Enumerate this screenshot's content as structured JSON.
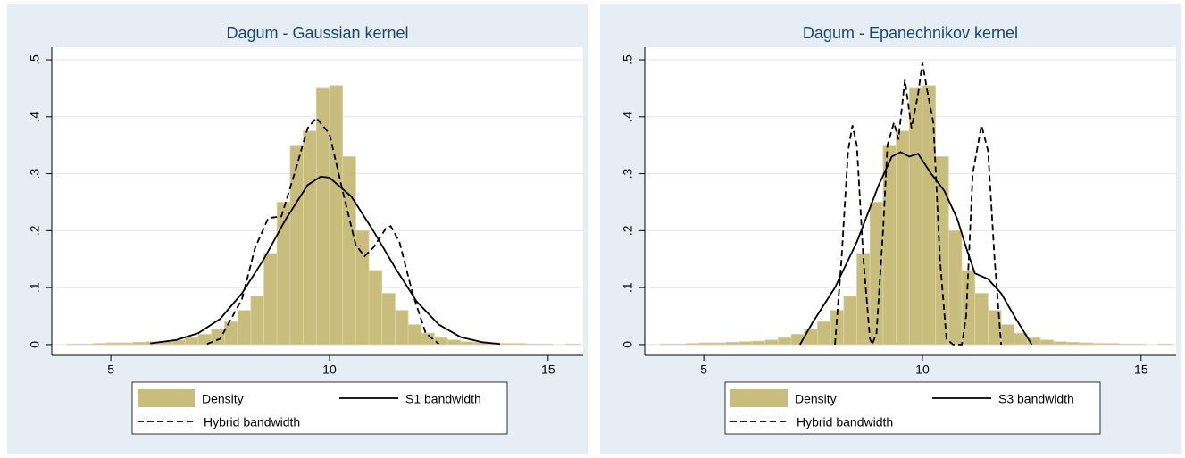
{
  "chart_data": [
    {
      "type": "histogram",
      "title": "Dagum - Gaussian kernel",
      "name": "Density",
      "color": "#c9bd7e",
      "bins": [
        4.0,
        4.3,
        4.6,
        4.9,
        5.2,
        5.5,
        5.8,
        6.1,
        6.4,
        6.7,
        7.0,
        7.3,
        7.6,
        7.9,
        8.2,
        8.5,
        8.8,
        9.1,
        9.4,
        9.7,
        10.0,
        10.3,
        10.6,
        10.9,
        11.2,
        11.5,
        11.8,
        12.1,
        12.4,
        12.7,
        13.0,
        13.3,
        13.6,
        13.9,
        14.2,
        14.5,
        14.8,
        15.1,
        15.4,
        15.7
      ],
      "values": [
        0.001,
        0.001,
        0.002,
        0.003,
        0.003,
        0.004,
        0.005,
        0.006,
        0.008,
        0.012,
        0.018,
        0.027,
        0.04,
        0.06,
        0.085,
        0.16,
        0.25,
        0.35,
        0.375,
        0.45,
        0.455,
        0.33,
        0.2,
        0.13,
        0.09,
        0.06,
        0.035,
        0.02,
        0.012,
        0.008,
        0.005,
        0.004,
        0.003,
        0.002,
        0.002,
        0.001,
        0.001,
        0,
        0.001
      ],
      "series": [
        {
          "name": "S1 bandwidth",
          "color": "#000000",
          "dash": false,
          "x": [
            5.9,
            6.5,
            7,
            7.5,
            8,
            8.5,
            9,
            9.5,
            9.8,
            10,
            10.5,
            11,
            11.5,
            12,
            12.5,
            13,
            13.5,
            13.9
          ],
          "values": [
            0.002,
            0.008,
            0.02,
            0.045,
            0.09,
            0.15,
            0.22,
            0.28,
            0.295,
            0.293,
            0.26,
            0.2,
            0.135,
            0.075,
            0.035,
            0.013,
            0.004,
            0.001
          ]
        },
        {
          "name": "Hybrid bandwidth",
          "color": "#000000",
          "dash": true,
          "x": [
            7.2,
            7.5,
            8,
            8.3,
            8.6,
            8.9,
            9.2,
            9.5,
            9.7,
            10,
            10.3,
            10.6,
            10.8,
            11,
            11.3,
            11.4,
            11.6,
            11.9,
            12.2,
            12.5
          ],
          "values": [
            0.001,
            0.01,
            0.08,
            0.17,
            0.222,
            0.225,
            0.3,
            0.38,
            0.398,
            0.37,
            0.27,
            0.175,
            0.155,
            0.17,
            0.205,
            0.208,
            0.18,
            0.09,
            0.02,
            0.001
          ]
        }
      ],
      "xlim": [
        3.65,
        15.8
      ],
      "xticks": [
        5,
        10,
        15
      ],
      "ylim": [
        -0.019,
        0.522
      ],
      "yticks": [
        0,
        {
          "value": 0.1,
          "label": ".1"
        },
        {
          "value": 0.2,
          "label": ".2"
        },
        {
          "value": 0.3,
          "label": ".3"
        },
        {
          "value": 0.4,
          "label": ".4"
        },
        {
          "value": 0.5,
          "label": ".5"
        }
      ],
      "grid": true
    },
    {
      "type": "histogram",
      "title": "Dagum - Epanechnikov kernel",
      "name": "Density",
      "color": "#c9bd7e",
      "bins": [
        4.0,
        4.3,
        4.6,
        4.9,
        5.2,
        5.5,
        5.8,
        6.1,
        6.4,
        6.7,
        7.0,
        7.3,
        7.6,
        7.9,
        8.2,
        8.5,
        8.8,
        9.1,
        9.4,
        9.7,
        10.0,
        10.3,
        10.6,
        10.9,
        11.2,
        11.5,
        11.8,
        12.1,
        12.4,
        12.7,
        13.0,
        13.3,
        13.6,
        13.9,
        14.2,
        14.5,
        14.8,
        15.1,
        15.4,
        15.7
      ],
      "values": [
        0.001,
        0.001,
        0.002,
        0.003,
        0.003,
        0.004,
        0.005,
        0.006,
        0.008,
        0.012,
        0.018,
        0.027,
        0.04,
        0.06,
        0.085,
        0.16,
        0.25,
        0.35,
        0.375,
        0.45,
        0.455,
        0.33,
        0.2,
        0.13,
        0.09,
        0.06,
        0.035,
        0.02,
        0.012,
        0.008,
        0.005,
        0.004,
        0.003,
        0.002,
        0.002,
        0.001,
        0.001,
        0,
        0.001
      ],
      "series": [
        {
          "name": "S3 bandwidth",
          "color": "#000000",
          "dash": false,
          "x": [
            7.2,
            7.5,
            8,
            8.5,
            9,
            9.3,
            9.5,
            9.7,
            9.9,
            10.2,
            10.5,
            10.8,
            11,
            11.2,
            11.5,
            11.8,
            12.1,
            12.5
          ],
          "values": [
            0,
            0.04,
            0.1,
            0.18,
            0.28,
            0.33,
            0.338,
            0.33,
            0.335,
            0.3,
            0.27,
            0.22,
            0.17,
            0.125,
            0.115,
            0.09,
            0.05,
            0
          ]
        },
        {
          "name": "Hybrid bandwidth",
          "color": "#000000",
          "dash": true,
          "x": [
            8.0,
            8.15,
            8.3,
            8.4,
            8.5,
            8.65,
            8.8,
            8.85,
            8.95,
            9.1,
            9.2,
            9.35,
            9.45,
            9.6,
            9.75,
            9.9,
            10.0,
            10.1,
            10.25,
            10.4,
            10.55,
            10.7,
            10.9,
            11.0,
            11.15,
            11.35,
            11.5,
            11.65,
            11.8
          ],
          "values": [
            0,
            0.15,
            0.34,
            0.385,
            0.35,
            0.15,
            0.01,
            0,
            0.02,
            0.2,
            0.35,
            0.39,
            0.36,
            0.465,
            0.38,
            0.44,
            0.495,
            0.45,
            0.39,
            0.15,
            0.01,
            0,
            0,
            0.05,
            0.3,
            0.385,
            0.34,
            0.15,
            0
          ]
        }
      ],
      "xlim": [
        3.65,
        15.8
      ],
      "xticks": [
        5,
        10,
        15
      ],
      "ylim": [
        -0.019,
        0.522
      ],
      "yticks": [
        0,
        {
          "value": 0.1,
          "label": ".1"
        },
        {
          "value": 0.2,
          "label": ".2"
        },
        {
          "value": 0.3,
          "label": ".3"
        },
        {
          "value": 0.4,
          "label": ".4"
        },
        {
          "value": 0.5,
          "label": ".5"
        }
      ],
      "grid": true
    }
  ]
}
